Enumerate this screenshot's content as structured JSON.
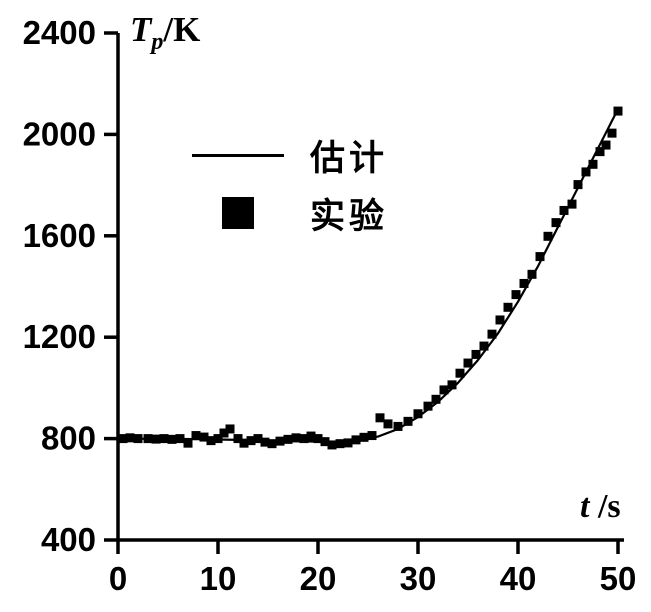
{
  "page": {
    "background_color": "#ffffff",
    "ink_color": "#000000"
  },
  "chart_data": {
    "type": "line",
    "title": "",
    "xlabel": "t/s",
    "ylabel": "Tp/K",
    "xlim": [
      0,
      50
    ],
    "ylim": [
      400,
      2400
    ],
    "xticks": [
      0,
      10,
      20,
      30,
      40,
      50
    ],
    "yticks": [
      400,
      800,
      1200,
      1600,
      2000,
      2400
    ],
    "grid": false,
    "legend_position": "upper-left-inside",
    "series": [
      {
        "name": "估计",
        "type": "line",
        "color": "#000000",
        "points": [
          [
            0,
            800
          ],
          [
            4,
            799
          ],
          [
            8,
            798
          ],
          [
            12,
            795
          ],
          [
            16,
            791
          ],
          [
            20,
            788
          ],
          [
            22,
            788
          ],
          [
            24,
            793
          ],
          [
            26,
            808
          ],
          [
            28,
            838
          ],
          [
            30,
            885
          ],
          [
            32,
            945
          ],
          [
            34,
            1020
          ],
          [
            36,
            1110
          ],
          [
            38,
            1215
          ],
          [
            40,
            1340
          ],
          [
            42,
            1480
          ],
          [
            44,
            1635
          ],
          [
            46,
            1790
          ],
          [
            48,
            1945
          ],
          [
            50,
            2100
          ]
        ]
      },
      {
        "name": "实验",
        "type": "scatter",
        "marker": "square",
        "color": "#000000",
        "points": [
          [
            0.5,
            800
          ],
          [
            1.2,
            803
          ],
          [
            2,
            800
          ],
          [
            3,
            800
          ],
          [
            3.8,
            798
          ],
          [
            4.6,
            800
          ],
          [
            5.4,
            797
          ],
          [
            6.2,
            800
          ],
          [
            7,
            782
          ],
          [
            7.8,
            812
          ],
          [
            8.6,
            806
          ],
          [
            9.3,
            792
          ],
          [
            10,
            800
          ],
          [
            10.6,
            822
          ],
          [
            11.2,
            838
          ],
          [
            12,
            800
          ],
          [
            12.6,
            782
          ],
          [
            13.3,
            792
          ],
          [
            14,
            800
          ],
          [
            14.7,
            786
          ],
          [
            15.4,
            780
          ],
          [
            16.2,
            790
          ],
          [
            17,
            797
          ],
          [
            17.8,
            803
          ],
          [
            18.6,
            800
          ],
          [
            19.3,
            810
          ],
          [
            20,
            800
          ],
          [
            20.7,
            788
          ],
          [
            21.4,
            775
          ],
          [
            22.2,
            780
          ],
          [
            23,
            783
          ],
          [
            23.8,
            795
          ],
          [
            24.6,
            805
          ],
          [
            25.4,
            812
          ],
          [
            26.2,
            882
          ],
          [
            27,
            858
          ],
          [
            28,
            848
          ],
          [
            29,
            868
          ],
          [
            30,
            898
          ],
          [
            31,
            928
          ],
          [
            31.8,
            955
          ],
          [
            32.6,
            992
          ],
          [
            33.4,
            1012
          ],
          [
            34.2,
            1058
          ],
          [
            35,
            1098
          ],
          [
            35.8,
            1132
          ],
          [
            36.6,
            1165
          ],
          [
            37.4,
            1212
          ],
          [
            38.2,
            1268
          ],
          [
            39,
            1318
          ],
          [
            39.8,
            1368
          ],
          [
            40.6,
            1412
          ],
          [
            41.4,
            1448
          ],
          [
            42.2,
            1518
          ],
          [
            43,
            1598
          ],
          [
            43.8,
            1652
          ],
          [
            44.6,
            1700
          ],
          [
            45.4,
            1725
          ],
          [
            46,
            1802
          ],
          [
            46.8,
            1852
          ],
          [
            47.5,
            1882
          ],
          [
            48.2,
            1932
          ],
          [
            48.8,
            1958
          ],
          [
            49.4,
            2005
          ],
          [
            50,
            2092
          ]
        ]
      }
    ]
  },
  "axis_titles": {
    "y": {
      "var": "T",
      "sub": "p",
      "unit": "/K"
    },
    "x": {
      "var": "t",
      "unit": " /s"
    }
  },
  "legend": {
    "items": [
      {
        "symbol": "line",
        "label": "估计"
      },
      {
        "symbol": "square",
        "label": "实验"
      }
    ]
  }
}
